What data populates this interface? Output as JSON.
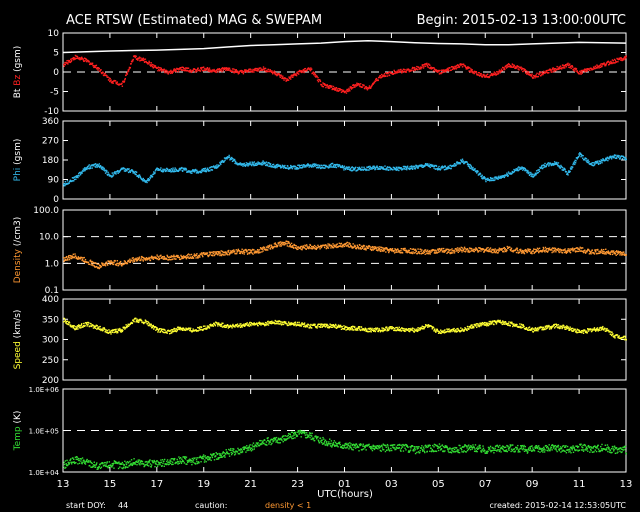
{
  "header": {
    "title": "ACE RTSW (Estimated) MAG & SWEPAM",
    "begin": "Begin: 2015-02-13 13:00:00UTC"
  },
  "footer": {
    "start_doy_label": "start DOY:",
    "start_doy": "44",
    "caution_label": "caution:",
    "caution_text": "density < 1",
    "created": "created: 2015-02-14 12:53:05UTC"
  },
  "colors": {
    "bt": "#ffffff",
    "bz": "#ff2020",
    "phi": "#33bbee",
    "density": "#ff9933",
    "speed": "#ffff33",
    "temp": "#33dd33",
    "axes": "#ffffff",
    "background": "#000000"
  },
  "chart_data": {
    "type": "scatter",
    "x_axis": {
      "label": "UTC(hours)",
      "ticks": [
        "13",
        "15",
        "17",
        "19",
        "21",
        "23",
        "01",
        "03",
        "05",
        "07",
        "09",
        "11",
        "13"
      ],
      "range_hours": [
        0,
        24
      ]
    },
    "panels": [
      {
        "id": "mag",
        "ylabel_parts": [
          {
            "text": "Bt",
            "color": "#ffffff"
          },
          {
            "text": " ",
            "color": "#ffffff"
          },
          {
            "text": "Bz",
            "color": "#ff2020"
          },
          {
            "text": " (gsm)",
            "color": "#ffffff"
          }
        ],
        "scale": "linear",
        "ylim": [
          -10,
          10
        ],
        "ticks": [
          {
            "v": 10,
            "label": "10"
          },
          {
            "v": 5,
            "label": "5"
          },
          {
            "v": 0,
            "label": "0"
          },
          {
            "v": -5,
            "label": "-5"
          },
          {
            "v": -10,
            "label": "-10"
          }
        ],
        "dashed": [
          0
        ],
        "series": [
          {
            "name": "Bt",
            "color": "#ffffff",
            "style": "line",
            "x": [
              0,
              1,
              2,
              3,
              4,
              5,
              6,
              7,
              8,
              9,
              10,
              11,
              12,
              13,
              14,
              15,
              16,
              17,
              18,
              19,
              20,
              21,
              22,
              23,
              24
            ],
            "y": [
              5,
              5.2,
              5.4,
              5.5,
              5.6,
              5.8,
              6,
              6.4,
              6.8,
              7,
              7.2,
              7.4,
              7.8,
              8,
              7.8,
              7.5,
              7.3,
              7.2,
              7,
              7,
              7.2,
              7.4,
              7.6,
              7.5,
              7.4
            ]
          },
          {
            "name": "Bz",
            "color": "#ff2020",
            "style": "dots",
            "x": [
              0,
              0.5,
              1,
              1.5,
              2,
              2.5,
              3,
              3.5,
              4,
              4.5,
              5,
              5.5,
              6,
              6.5,
              7,
              7.5,
              8,
              8.5,
              9,
              9.5,
              10,
              10.5,
              11,
              11.5,
              12,
              12.5,
              13,
              13.5,
              14,
              14.5,
              15,
              15.5,
              16,
              16.5,
              17,
              17.5,
              18,
              18.5,
              19,
              19.5,
              20,
              20.5,
              21,
              21.5,
              22,
              22.5,
              23,
              23.5,
              24
            ],
            "y": [
              2,
              4,
              3,
              1,
              -2,
              -3,
              4,
              3,
              1,
              0,
              1,
              0.5,
              1,
              0.5,
              1,
              0,
              0.5,
              1,
              0,
              -2,
              0,
              1,
              -3,
              -4,
              -5,
              -3,
              -4,
              -1,
              0,
              0.5,
              1,
              2,
              0,
              1,
              2,
              0,
              -1,
              0,
              2,
              1,
              -1,
              0,
              1,
              2,
              0,
              1,
              2,
              3,
              4
            ]
          }
        ]
      },
      {
        "id": "phi",
        "ylabel_parts": [
          {
            "text": "Phi",
            "color": "#33bbee"
          },
          {
            "text": " (gsm)",
            "color": "#ffffff"
          }
        ],
        "scale": "linear",
        "ylim": [
          0,
          360
        ],
        "ticks": [
          {
            "v": 360,
            "label": "360"
          },
          {
            "v": 270,
            "label": "270"
          },
          {
            "v": 180,
            "label": "180"
          },
          {
            "v": 90,
            "label": "90"
          },
          {
            "v": 0,
            "label": "0"
          }
        ],
        "dashed": [],
        "series": [
          {
            "name": "Phi",
            "color": "#33bbee",
            "style": "dots",
            "x": [
              0,
              0.5,
              1,
              1.5,
              2,
              2.5,
              3,
              3.5,
              4,
              4.5,
              5,
              5.5,
              6,
              6.5,
              7,
              7.5,
              8,
              8.5,
              9,
              9.5,
              10,
              10.5,
              11,
              11.5,
              12,
              12.5,
              13,
              13.5,
              14,
              14.5,
              15,
              15.5,
              16,
              16.5,
              17,
              17.5,
              18,
              18.5,
              19,
              19.5,
              20,
              20.5,
              21,
              21.5,
              22,
              22.5,
              23,
              23.5,
              24
            ],
            "y": [
              70,
              100,
              150,
              160,
              110,
              140,
              130,
              80,
              140,
              135,
              140,
              130,
              135,
              150,
              200,
              160,
              165,
              170,
              155,
              150,
              150,
              160,
              150,
              160,
              145,
              140,
              145,
              150,
              140,
              145,
              150,
              160,
              145,
              150,
              180,
              140,
              90,
              100,
              120,
              150,
              110,
              160,
              170,
              120,
              210,
              160,
              180,
              200,
              190
            ]
          }
        ]
      },
      {
        "id": "density",
        "ylabel_parts": [
          {
            "text": "Density",
            "color": "#ff9933"
          },
          {
            "text": " (/cm3)",
            "color": "#ffffff"
          }
        ],
        "scale": "log",
        "ylim": [
          0.1,
          100
        ],
        "ticks": [
          {
            "v": 100,
            "label": "100.0"
          },
          {
            "v": 10,
            "label": "10.0"
          },
          {
            "v": 1,
            "label": "1.0"
          },
          {
            "v": 0.1,
            "label": "0.1"
          }
        ],
        "dashed": [
          10,
          1
        ],
        "series": [
          {
            "name": "Density",
            "color": "#ff9933",
            "style": "dots",
            "x": [
              0,
              0.5,
              1,
              1.5,
              2,
              2.5,
              3,
              3.5,
              4,
              4.5,
              5,
              5.5,
              6,
              6.5,
              7,
              7.5,
              8,
              8.5,
              9,
              9.5,
              10,
              10.5,
              11,
              11.5,
              12,
              12.5,
              13,
              13.5,
              14,
              14.5,
              15,
              15.5,
              16,
              16.5,
              17,
              17.5,
              18,
              18.5,
              19,
              19.5,
              20,
              20.5,
              21,
              21.5,
              22,
              22.5,
              23,
              23.5,
              24
            ],
            "y": [
              1.5,
              2,
              1.3,
              0.8,
              1.2,
              1.0,
              1.5,
              1.6,
              1.8,
              1.7,
              1.8,
              2.0,
              2.2,
              2.5,
              2.6,
              3.0,
              2.8,
              3.5,
              5,
              6,
              4,
              4.5,
              4.2,
              5,
              5.5,
              4.5,
              4,
              3.6,
              3.2,
              3.2,
              3.0,
              2.8,
              3.2,
              3.0,
              3.5,
              3.3,
              3.4,
              3.2,
              3.8,
              3.0,
              3.0,
              3.5,
              3.2,
              3.0,
              3.5,
              2.8,
              3.0,
              2.6,
              2.5
            ]
          }
        ]
      },
      {
        "id": "speed",
        "ylabel_parts": [
          {
            "text": "Speed",
            "color": "#ffff33"
          },
          {
            "text": " (km/s)",
            "color": "#ffffff"
          }
        ],
        "scale": "linear",
        "ylim": [
          200,
          400
        ],
        "ticks": [
          {
            "v": 400,
            "label": "400"
          },
          {
            "v": 350,
            "label": "350"
          },
          {
            "v": 300,
            "label": "300"
          },
          {
            "v": 250,
            "label": "250"
          },
          {
            "v": 200,
            "label": "200"
          }
        ],
        "dashed": [],
        "series": [
          {
            "name": "Speed",
            "color": "#ffff33",
            "style": "dots",
            "x": [
              0,
              0.5,
              1,
              1.5,
              2,
              2.5,
              3,
              3.5,
              4,
              4.5,
              5,
              5.5,
              6,
              6.5,
              7,
              7.5,
              8,
              8.5,
              9,
              9.5,
              10,
              10.5,
              11,
              11.5,
              12,
              12.5,
              13,
              13.5,
              14,
              14.5,
              15,
              15.5,
              16,
              16.5,
              17,
              17.5,
              18,
              18.5,
              19,
              19.5,
              20,
              20.5,
              21,
              21.5,
              22,
              22.5,
              23,
              23.5,
              24
            ],
            "y": [
              350,
              330,
              340,
              330,
              320,
              325,
              350,
              345,
              325,
              320,
              330,
              325,
              330,
              340,
              335,
              335,
              340,
              340,
              345,
              340,
              340,
              335,
              335,
              335,
              330,
              330,
              325,
              325,
              330,
              325,
              325,
              335,
              320,
              325,
              325,
              335,
              340,
              345,
              340,
              335,
              325,
              330,
              335,
              330,
              320,
              325,
              330,
              310,
              305
            ]
          }
        ]
      },
      {
        "id": "temp",
        "ylabel_parts": [
          {
            "text": "Temp",
            "color": "#33dd33"
          },
          {
            "text": " (K)",
            "color": "#ffffff"
          }
        ],
        "scale": "log",
        "ylim": [
          10000,
          1000000
        ],
        "ticks": [
          {
            "v": 1000000,
            "label": "1.0E+06"
          },
          {
            "v": 100000,
            "label": "1.0E+05"
          },
          {
            "v": 10000,
            "label": "1.0E+04"
          }
        ],
        "dashed": [
          100000
        ],
        "series": [
          {
            "name": "Temp",
            "color": "#33dd33",
            "style": "dots",
            "x": [
              0,
              0.5,
              1,
              1.5,
              2,
              2.5,
              3,
              3.5,
              4,
              4.5,
              5,
              5.5,
              6,
              6.5,
              7,
              7.5,
              8,
              8.5,
              9,
              9.5,
              10,
              10.5,
              11,
              11.5,
              12,
              12.5,
              13,
              13.5,
              14,
              14.5,
              15,
              15.5,
              16,
              16.5,
              17,
              17.5,
              18,
              18.5,
              19,
              19.5,
              20,
              20.5,
              21,
              21.5,
              22,
              22.5,
              23,
              23.5,
              24
            ],
            "y": [
              15000,
              20000,
              18000,
              14000,
              16000,
              15000,
              18000,
              17000,
              16000,
              18000,
              20000,
              19000,
              22000,
              25000,
              30000,
              35000,
              40000,
              55000,
              60000,
              70000,
              90000,
              80000,
              60000,
              50000,
              45000,
              40000,
              42000,
              40000,
              38000,
              40000,
              35000,
              38000,
              40000,
              36000,
              38000,
              40000,
              35000,
              38000,
              40000,
              37000,
              36000,
              38000,
              40000,
              36000,
              40000,
              38000,
              40000,
              36000,
              35000
            ]
          }
        ]
      }
    ]
  }
}
